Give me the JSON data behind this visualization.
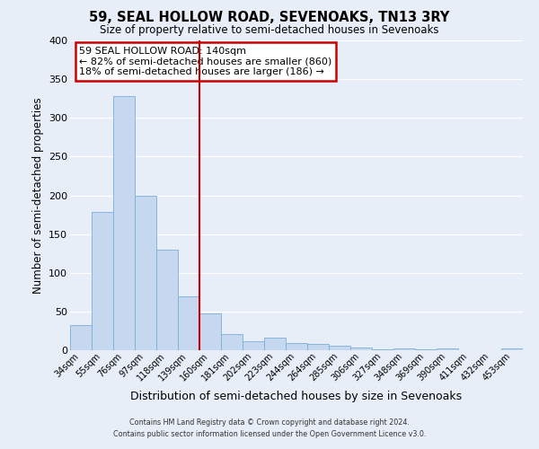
{
  "title": "59, SEAL HOLLOW ROAD, SEVENOAKS, TN13 3RY",
  "subtitle": "Size of property relative to semi-detached houses in Sevenoaks",
  "xlabel": "Distribution of semi-detached houses by size in Sevenoaks",
  "ylabel": "Number of semi-detached properties",
  "bar_values": [
    33,
    178,
    328,
    200,
    130,
    70,
    48,
    21,
    12,
    16,
    9,
    8,
    6,
    4,
    1,
    2,
    1,
    2,
    0,
    0,
    2
  ],
  "bin_labels": [
    "34sqm",
    "55sqm",
    "76sqm",
    "97sqm",
    "118sqm",
    "139sqm",
    "160sqm",
    "181sqm",
    "202sqm",
    "223sqm",
    "244sqm",
    "264sqm",
    "285sqm",
    "306sqm",
    "327sqm",
    "348sqm",
    "369sqm",
    "390sqm",
    "411sqm",
    "432sqm",
    "453sqm"
  ],
  "bar_color": "#c5d8f0",
  "bar_edge_color": "#7bafd4",
  "background_color": "#e8eef8",
  "grid_color": "#ffffff",
  "annotation_title": "59 SEAL HOLLOW ROAD: 140sqm",
  "annotation_line1": "← 82% of semi-detached houses are smaller (860)",
  "annotation_line2": "18% of semi-detached houses are larger (186) →",
  "annotation_box_color": "#ffffff",
  "annotation_box_edge_color": "#cc0000",
  "property_line_color": "#cc0000",
  "ylim": [
    0,
    400
  ],
  "yticks": [
    0,
    50,
    100,
    150,
    200,
    250,
    300,
    350,
    400
  ],
  "footer_line1": "Contains HM Land Registry data © Crown copyright and database right 2024.",
  "footer_line2": "Contains public sector information licensed under the Open Government Licence v3.0."
}
